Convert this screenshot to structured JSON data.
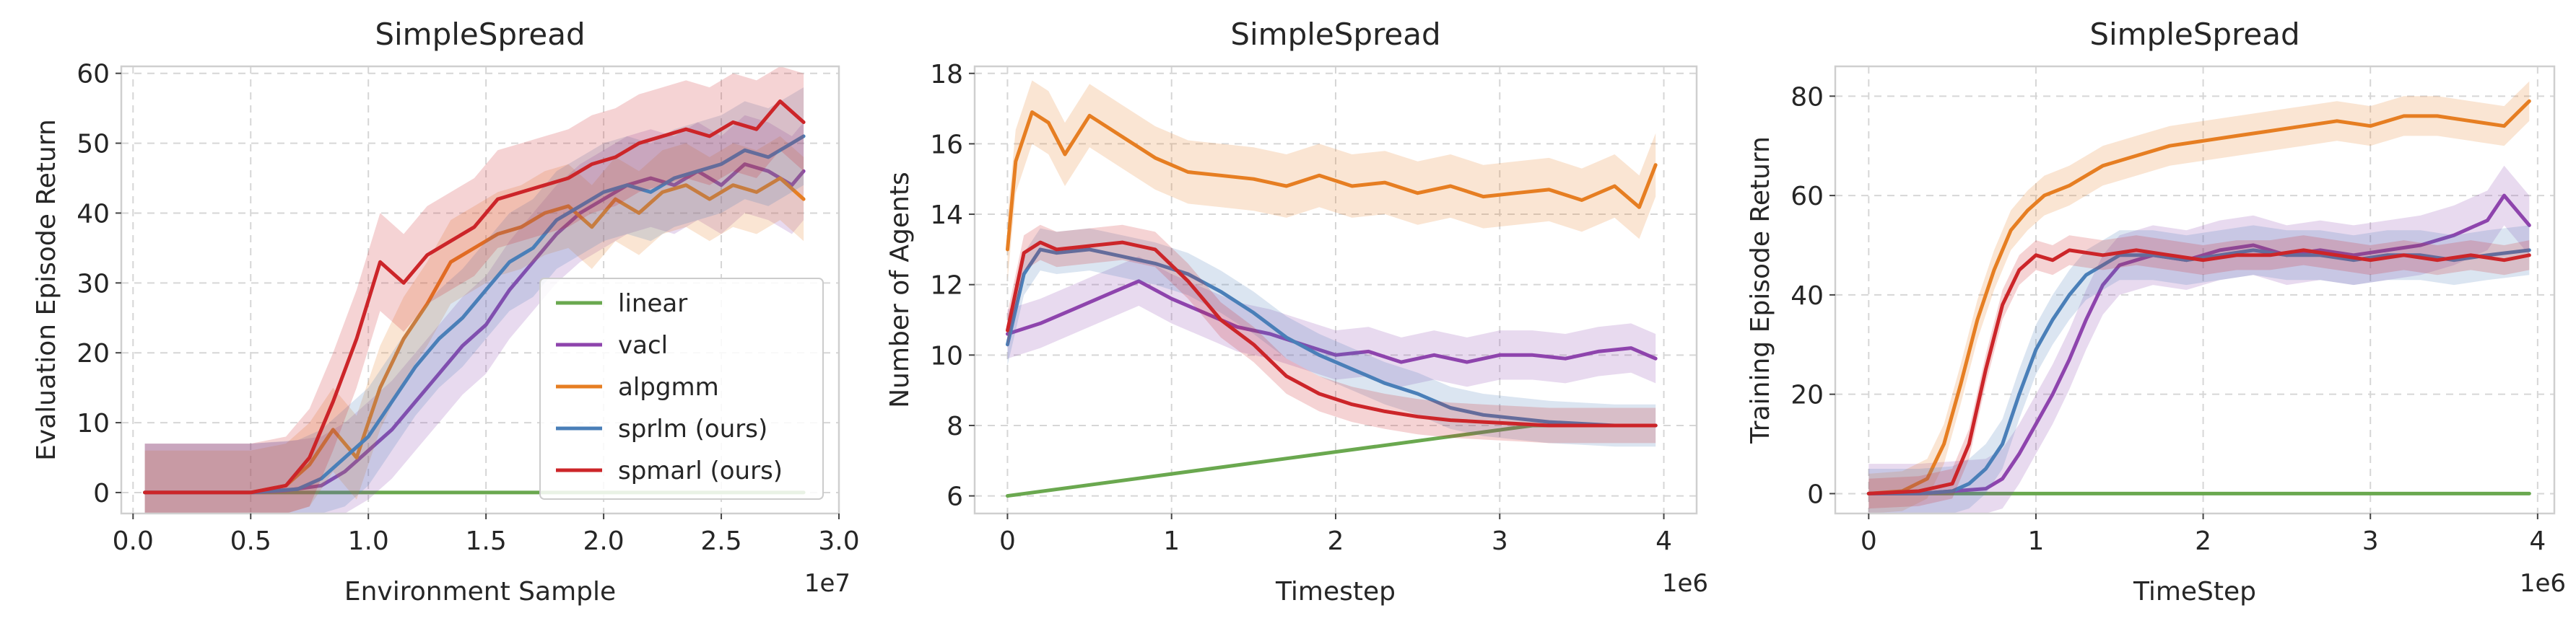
{
  "colors": {
    "linear": "#6aa84f",
    "vacl": "#8e44ad",
    "alpgmm": "#e67e22",
    "sprlm": "#4a7fb8",
    "spmarl": "#cc2529",
    "grid": "#d6d6d6",
    "frame": "#cfcfcf",
    "text": "#262626"
  },
  "chart_data": [
    {
      "type": "line",
      "title": "SimpleSpread",
      "xlabel": "Environment Sample",
      "ylabel": "Evaluation Episode Return",
      "x_multiplier_label": "1e7",
      "xlim": [
        -0.05,
        3.0
      ],
      "ylim": [
        -3,
        61
      ],
      "xticks": [
        0.0,
        0.5,
        1.0,
        1.5,
        2.0,
        2.5,
        3.0
      ],
      "xtick_labels": [
        "0.0",
        "0.5",
        "1.0",
        "1.5",
        "2.0",
        "2.5",
        "3.0"
      ],
      "yticks": [
        0,
        10,
        20,
        30,
        40,
        50,
        60
      ],
      "ytick_labels": [
        "0",
        "10",
        "20",
        "30",
        "40",
        "50",
        "60"
      ],
      "grid": true,
      "legend": {
        "placement": "lower-right",
        "entries": [
          "linear",
          "vacl",
          "alpgmm",
          "sprlm (ours)",
          "spmarl (ours)"
        ]
      },
      "series": [
        {
          "name": "linear",
          "color_key": "linear",
          "band": 0,
          "x": [
            0.05,
            1.0,
            2.0,
            2.85
          ],
          "y": [
            0,
            0,
            0,
            0
          ]
        },
        {
          "name": "vacl",
          "color_key": "vacl",
          "band": 7,
          "x": [
            0.05,
            0.5,
            0.65,
            0.8,
            0.9,
            1.0,
            1.1,
            1.2,
            1.3,
            1.4,
            1.5,
            1.6,
            1.7,
            1.8,
            1.9,
            2.0,
            2.1,
            2.2,
            2.3,
            2.4,
            2.5,
            2.6,
            2.7,
            2.8,
            2.85
          ],
          "y": [
            0,
            0,
            0.3,
            1,
            3,
            6,
            9,
            13,
            17,
            21,
            24,
            29,
            33,
            37,
            40,
            42,
            44,
            45,
            44,
            46,
            44,
            47,
            46,
            44,
            46
          ]
        },
        {
          "name": "alpgmm",
          "color_key": "alpgmm",
          "band": 6,
          "x": [
            0.05,
            0.5,
            0.65,
            0.75,
            0.85,
            0.95,
            1.05,
            1.15,
            1.25,
            1.35,
            1.45,
            1.55,
            1.65,
            1.75,
            1.85,
            1.95,
            2.05,
            2.15,
            2.25,
            2.35,
            2.45,
            2.55,
            2.65,
            2.75,
            2.85
          ],
          "y": [
            0,
            0,
            1,
            4,
            9,
            5,
            15,
            22,
            27,
            33,
            35,
            37,
            38,
            40,
            41,
            38,
            42,
            40,
            43,
            44,
            42,
            44,
            43,
            45,
            42
          ]
        },
        {
          "name": "sprlm (ours)",
          "color_key": "sprlm",
          "band": 7,
          "x": [
            0.05,
            0.5,
            0.7,
            0.8,
            0.9,
            1.0,
            1.1,
            1.2,
            1.3,
            1.4,
            1.5,
            1.6,
            1.7,
            1.8,
            1.9,
            2.0,
            2.1,
            2.2,
            2.3,
            2.4,
            2.5,
            2.6,
            2.7,
            2.8,
            2.85
          ],
          "y": [
            0,
            0,
            0.5,
            2,
            5,
            8,
            13,
            18,
            22,
            25,
            29,
            33,
            35,
            39,
            41,
            43,
            44,
            43,
            45,
            46,
            47,
            49,
            48,
            50,
            51
          ]
        },
        {
          "name": "spmarl (ours)",
          "color_key": "spmarl",
          "band": 7,
          "x": [
            0.05,
            0.5,
            0.65,
            0.75,
            0.85,
            0.95,
            1.05,
            1.15,
            1.25,
            1.35,
            1.45,
            1.55,
            1.65,
            1.75,
            1.85,
            1.95,
            2.05,
            2.15,
            2.25,
            2.35,
            2.45,
            2.55,
            2.65,
            2.75,
            2.85
          ],
          "y": [
            0,
            0,
            1,
            5,
            13,
            22,
            33,
            30,
            34,
            36,
            38,
            42,
            43,
            44,
            45,
            47,
            48,
            50,
            51,
            52,
            51,
            53,
            52,
            56,
            53
          ]
        }
      ]
    },
    {
      "type": "line",
      "title": "SimpleSpread",
      "xlabel": "Timestep",
      "ylabel": "Number of Agents",
      "x_multiplier_label": "1e6",
      "xlim": [
        -0.2,
        4.2
      ],
      "ylim": [
        5.5,
        18.2
      ],
      "xticks": [
        0,
        1,
        2,
        3,
        4
      ],
      "xtick_labels": [
        "0",
        "1",
        "2",
        "3",
        "4"
      ],
      "yticks": [
        6,
        8,
        10,
        12,
        14,
        16,
        18
      ],
      "ytick_labels": [
        "6",
        "8",
        "10",
        "12",
        "14",
        "16",
        "18"
      ],
      "grid": true,
      "series": [
        {
          "name": "linear",
          "color_key": "linear",
          "band": 0,
          "x": [
            0.0,
            3.2,
            3.95
          ],
          "y": [
            6.0,
            8.0,
            8.0
          ]
        },
        {
          "name": "vacl",
          "color_key": "vacl",
          "band": 0.7,
          "x": [
            0.0,
            0.2,
            0.4,
            0.6,
            0.8,
            1.0,
            1.2,
            1.4,
            1.6,
            1.8,
            2.0,
            2.2,
            2.4,
            2.6,
            2.8,
            3.0,
            3.2,
            3.4,
            3.6,
            3.8,
            3.95
          ],
          "y": [
            10.6,
            10.9,
            11.3,
            11.7,
            12.1,
            11.6,
            11.2,
            10.8,
            10.6,
            10.3,
            10.0,
            10.1,
            9.8,
            10.0,
            9.8,
            10.0,
            10.0,
            9.9,
            10.1,
            10.2,
            9.9
          ]
        },
        {
          "name": "alpgmm",
          "color_key": "alpgmm",
          "band": 0.9,
          "x": [
            0.0,
            0.05,
            0.15,
            0.25,
            0.35,
            0.5,
            0.7,
            0.9,
            1.1,
            1.3,
            1.5,
            1.7,
            1.9,
            2.1,
            2.3,
            2.5,
            2.7,
            2.9,
            3.1,
            3.3,
            3.5,
            3.7,
            3.85,
            3.95
          ],
          "y": [
            13.0,
            15.5,
            16.9,
            16.6,
            15.7,
            16.8,
            16.2,
            15.6,
            15.2,
            15.1,
            15.0,
            14.8,
            15.1,
            14.8,
            14.9,
            14.6,
            14.8,
            14.5,
            14.6,
            14.7,
            14.4,
            14.8,
            14.2,
            15.4
          ]
        },
        {
          "name": "sprlm (ours)",
          "color_key": "sprlm",
          "band": 0.6,
          "x": [
            0.0,
            0.1,
            0.2,
            0.3,
            0.5,
            0.7,
            0.9,
            1.1,
            1.3,
            1.5,
            1.7,
            1.9,
            2.1,
            2.3,
            2.5,
            2.7,
            2.9,
            3.1,
            3.3,
            3.5,
            3.7,
            3.95
          ],
          "y": [
            10.3,
            12.3,
            13.0,
            12.9,
            13.0,
            12.8,
            12.6,
            12.3,
            11.8,
            11.2,
            10.5,
            10.0,
            9.6,
            9.2,
            8.9,
            8.5,
            8.3,
            8.2,
            8.1,
            8.05,
            8.0,
            8.0
          ]
        },
        {
          "name": "spmarl (ours)",
          "color_key": "spmarl",
          "band": 0.5,
          "x": [
            0.0,
            0.1,
            0.2,
            0.3,
            0.5,
            0.7,
            0.9,
            1.1,
            1.3,
            1.5,
            1.7,
            1.9,
            2.1,
            2.3,
            2.5,
            2.7,
            2.9,
            3.1,
            3.3,
            3.5,
            3.7,
            3.95
          ],
          "y": [
            10.7,
            12.9,
            13.2,
            13.0,
            13.1,
            13.2,
            13.0,
            12.1,
            11.0,
            10.3,
            9.4,
            8.9,
            8.6,
            8.4,
            8.25,
            8.15,
            8.1,
            8.05,
            8.0,
            8.0,
            8.0,
            8.0
          ]
        }
      ]
    },
    {
      "type": "line",
      "title": "SimpleSpread",
      "xlabel": "TimeStep",
      "ylabel": "Training Episode Return",
      "x_multiplier_label": "1e6",
      "xlim": [
        -0.2,
        4.1
      ],
      "ylim": [
        -4,
        86
      ],
      "xticks": [
        0,
        1,
        2,
        3,
        4
      ],
      "xtick_labels": [
        "0",
        "1",
        "2",
        "3",
        "4"
      ],
      "yticks": [
        0,
        20,
        40,
        60,
        80
      ],
      "ytick_labels": [
        "0",
        "20",
        "40",
        "60",
        "80"
      ],
      "grid": true,
      "series": [
        {
          "name": "linear",
          "color_key": "linear",
          "band": 0,
          "x": [
            0.0,
            1.0,
            2.0,
            3.0,
            3.95
          ],
          "y": [
            0,
            0,
            0,
            0,
            0
          ]
        },
        {
          "name": "vacl",
          "color_key": "vacl",
          "band": 6,
          "x": [
            0.0,
            0.3,
            0.5,
            0.7,
            0.8,
            0.9,
            1.0,
            1.1,
            1.2,
            1.3,
            1.4,
            1.5,
            1.7,
            1.9,
            2.1,
            2.3,
            2.5,
            2.7,
            2.9,
            3.1,
            3.3,
            3.5,
            3.7,
            3.8,
            3.95
          ],
          "y": [
            0,
            0,
            0.5,
            1,
            3,
            8,
            14,
            20,
            27,
            35,
            42,
            46,
            48,
            47,
            49,
            50,
            48,
            49,
            48,
            49,
            50,
            52,
            55,
            60,
            54
          ]
        },
        {
          "name": "alpgmm",
          "color_key": "alpgmm",
          "band": 4,
          "x": [
            0.0,
            0.2,
            0.35,
            0.45,
            0.55,
            0.65,
            0.75,
            0.85,
            0.95,
            1.05,
            1.2,
            1.4,
            1.6,
            1.8,
            2.0,
            2.2,
            2.4,
            2.6,
            2.8,
            3.0,
            3.2,
            3.4,
            3.6,
            3.8,
            3.95
          ],
          "y": [
            0,
            0.5,
            3,
            10,
            22,
            35,
            45,
            53,
            57,
            60,
            62,
            66,
            68,
            70,
            71,
            72,
            73,
            74,
            75,
            74,
            76,
            76,
            75,
            74,
            79
          ]
        },
        {
          "name": "sprlm (ours)",
          "color_key": "sprlm",
          "band": 5,
          "x": [
            0.0,
            0.3,
            0.5,
            0.6,
            0.7,
            0.8,
            0.9,
            1.0,
            1.1,
            1.2,
            1.3,
            1.4,
            1.5,
            1.7,
            1.9,
            2.1,
            2.3,
            2.5,
            2.7,
            2.9,
            3.1,
            3.3,
            3.5,
            3.7,
            3.95
          ],
          "y": [
            0,
            0,
            0.5,
            2,
            5,
            10,
            20,
            29,
            35,
            40,
            44,
            46,
            48,
            48,
            47,
            48,
            49,
            48,
            48,
            47,
            48,
            48,
            47,
            48,
            49
          ]
        },
        {
          "name": "spmarl (ours)",
          "color_key": "spmarl",
          "band": 3,
          "x": [
            0.0,
            0.3,
            0.5,
            0.6,
            0.7,
            0.8,
            0.9,
            1.0,
            1.1,
            1.2,
            1.4,
            1.6,
            1.8,
            2.0,
            2.2,
            2.4,
            2.6,
            2.8,
            3.0,
            3.2,
            3.4,
            3.6,
            3.8,
            3.95
          ],
          "y": [
            0,
            0.5,
            2,
            10,
            25,
            38,
            45,
            48,
            47,
            49,
            48,
            49,
            48,
            47,
            48,
            48,
            49,
            48,
            47,
            48,
            47,
            48,
            47,
            48
          ]
        }
      ]
    }
  ]
}
